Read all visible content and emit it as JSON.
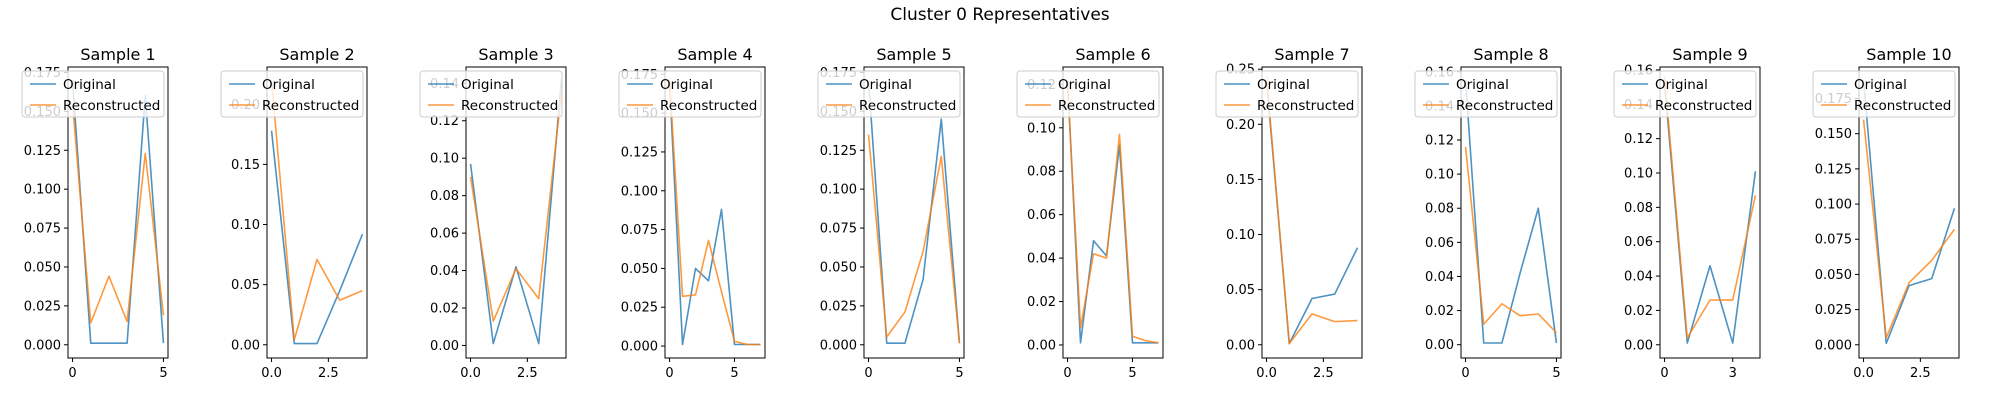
{
  "figure": {
    "title": "Cluster 0 Representatives"
  },
  "colors": {
    "original": "#1f77b4",
    "reconstructed": "#ff7f0e"
  },
  "legend": {
    "labels": [
      "Original",
      "Reconstructed"
    ],
    "placement": "upper-right"
  },
  "chart_data": [
    {
      "type": "line",
      "title": "Sample 1",
      "xlim": [
        -0.25,
        5.25
      ],
      "ylim": [
        -0.0085,
        0.1785
      ],
      "xticks": [
        {
          "v": 0,
          "label": "0"
        },
        {
          "v": 5,
          "label": "5"
        }
      ],
      "yticks": [
        {
          "v": 0,
          "label": "0.000"
        },
        {
          "v": 0.025,
          "label": "0.025"
        },
        {
          "v": 0.05,
          "label": "0.050"
        },
        {
          "v": 0.075,
          "label": "0.075"
        },
        {
          "v": 0.1,
          "label": "0.100"
        },
        {
          "v": 0.125,
          "label": "0.125"
        },
        {
          "v": 0.15,
          "label": "0.150"
        },
        {
          "v": 0.175,
          "label": "0.175"
        }
      ],
      "series": [
        {
          "name": "Original",
          "x": [
            0,
            1,
            2,
            3,
            4,
            5
          ],
          "y": [
            0.17,
            0.001,
            0.001,
            0.001,
            0.16,
            0.001
          ]
        },
        {
          "name": "Reconstructed",
          "x": [
            0,
            1,
            2,
            3,
            4,
            5
          ],
          "y": [
            0.155,
            0.014,
            0.044,
            0.015,
            0.123,
            0.019
          ]
        }
      ]
    },
    {
      "type": "line",
      "title": "Sample 2",
      "xlim": [
        -0.2,
        4.2
      ],
      "ylim": [
        -0.011,
        0.231
      ],
      "xticks": [
        {
          "v": 0,
          "label": "0.0"
        },
        {
          "v": 2.5,
          "label": "2.5"
        }
      ],
      "yticks": [
        {
          "v": 0,
          "label": "0.00"
        },
        {
          "v": 0.05,
          "label": "0.05"
        },
        {
          "v": 0.1,
          "label": "0.10"
        },
        {
          "v": 0.15,
          "label": "0.15"
        },
        {
          "v": 0.2,
          "label": "0.20"
        }
      ],
      "series": [
        {
          "name": "Original",
          "x": [
            0,
            1,
            2,
            3,
            4
          ],
          "y": [
            0.178,
            0.001,
            0.001,
            0.045,
            0.092
          ]
        },
        {
          "name": "Reconstructed",
          "x": [
            0,
            1,
            2,
            3,
            4
          ],
          "y": [
            0.22,
            0.004,
            0.071,
            0.037,
            0.045
          ]
        }
      ]
    },
    {
      "type": "line",
      "title": "Sample 3",
      "xlim": [
        -0.2,
        4.2
      ],
      "ylim": [
        -0.0067,
        0.1487
      ],
      "xticks": [
        {
          "v": 0,
          "label": "0.0"
        },
        {
          "v": 2.5,
          "label": "2.5"
        }
      ],
      "yticks": [
        {
          "v": 0,
          "label": "0.00"
        },
        {
          "v": 0.02,
          "label": "0.02"
        },
        {
          "v": 0.04,
          "label": "0.04"
        },
        {
          "v": 0.06,
          "label": "0.06"
        },
        {
          "v": 0.08,
          "label": "0.08"
        },
        {
          "v": 0.1,
          "label": "0.10"
        },
        {
          "v": 0.12,
          "label": "0.12"
        },
        {
          "v": 0.14,
          "label": "0.14"
        }
      ],
      "series": [
        {
          "name": "Original",
          "x": [
            0,
            1,
            2,
            3,
            4
          ],
          "y": [
            0.097,
            0.001,
            0.042,
            0.001,
            0.142
          ]
        },
        {
          "name": "Reconstructed",
          "x": [
            0,
            1,
            2,
            3,
            4
          ],
          "y": [
            0.09,
            0.013,
            0.041,
            0.025,
            0.135
          ]
        }
      ]
    },
    {
      "type": "line",
      "title": "Sample 4",
      "xlim": [
        -0.35,
        7.35
      ],
      "ylim": [
        -0.0077,
        0.1797
      ],
      "xticks": [
        {
          "v": 0,
          "label": "0"
        },
        {
          "v": 5,
          "label": "5"
        }
      ],
      "yticks": [
        {
          "v": 0,
          "label": "0.000"
        },
        {
          "v": 0.025,
          "label": "0.025"
        },
        {
          "v": 0.05,
          "label": "0.050"
        },
        {
          "v": 0.075,
          "label": "0.075"
        },
        {
          "v": 0.1,
          "label": "0.100"
        },
        {
          "v": 0.125,
          "label": "0.125"
        },
        {
          "v": 0.15,
          "label": "0.150"
        },
        {
          "v": 0.175,
          "label": "0.175"
        }
      ],
      "series": [
        {
          "name": "Original",
          "x": [
            0,
            1,
            2,
            3,
            4,
            5,
            6,
            7
          ],
          "y": [
            0.17,
            0.001,
            0.05,
            0.042,
            0.088,
            0.001,
            0.001,
            0.001
          ]
        },
        {
          "name": "Reconstructed",
          "x": [
            0,
            1,
            2,
            3,
            4,
            5,
            6,
            7
          ],
          "y": [
            0.172,
            0.032,
            0.033,
            0.068,
            0.035,
            0.003,
            0.001,
            0.001
          ]
        }
      ]
    },
    {
      "type": "line",
      "title": "Sample 5",
      "xlim": [
        -0.25,
        5.25
      ],
      "ylim": [
        -0.0085,
        0.1785
      ],
      "xticks": [
        {
          "v": 0,
          "label": "0"
        },
        {
          "v": 5,
          "label": "5"
        }
      ],
      "yticks": [
        {
          "v": 0,
          "label": "0.000"
        },
        {
          "v": 0.025,
          "label": "0.025"
        },
        {
          "v": 0.05,
          "label": "0.050"
        },
        {
          "v": 0.075,
          "label": "0.075"
        },
        {
          "v": 0.1,
          "label": "0.100"
        },
        {
          "v": 0.125,
          "label": "0.125"
        },
        {
          "v": 0.15,
          "label": "0.150"
        },
        {
          "v": 0.175,
          "label": "0.175"
        }
      ],
      "series": [
        {
          "name": "Original",
          "x": [
            0,
            1,
            2,
            3,
            4,
            5
          ],
          "y": [
            0.17,
            0.001,
            0.001,
            0.042,
            0.145,
            0.001
          ]
        },
        {
          "name": "Reconstructed",
          "x": [
            0,
            1,
            2,
            3,
            4,
            5
          ],
          "y": [
            0.135,
            0.005,
            0.021,
            0.06,
            0.121,
            0.001
          ]
        }
      ]
    },
    {
      "type": "line",
      "title": "Sample 6",
      "xlim": [
        -0.35,
        7.35
      ],
      "ylim": [
        -0.006,
        0.128
      ],
      "xticks": [
        {
          "v": 0,
          "label": "0"
        },
        {
          "v": 5,
          "label": "5"
        }
      ],
      "yticks": [
        {
          "v": 0,
          "label": "0.00"
        },
        {
          "v": 0.02,
          "label": "0.02"
        },
        {
          "v": 0.04,
          "label": "0.04"
        },
        {
          "v": 0.06,
          "label": "0.06"
        },
        {
          "v": 0.08,
          "label": "0.08"
        },
        {
          "v": 0.1,
          "label": "0.10"
        },
        {
          "v": 0.12,
          "label": "0.12"
        }
      ],
      "series": [
        {
          "name": "Original",
          "x": [
            0,
            1,
            2,
            3,
            4,
            5,
            6,
            7
          ],
          "y": [
            0.122,
            0.001,
            0.048,
            0.041,
            0.092,
            0.001,
            0.001,
            0.001
          ]
        },
        {
          "name": "Reconstructed",
          "x": [
            0,
            1,
            2,
            3,
            4,
            5,
            6,
            7
          ],
          "y": [
            0.12,
            0.008,
            0.042,
            0.04,
            0.097,
            0.004,
            0.002,
            0.001
          ]
        }
      ]
    },
    {
      "type": "line",
      "title": "Sample 7",
      "xlim": [
        -0.2,
        4.2
      ],
      "ylim": [
        -0.012,
        0.252
      ],
      "xticks": [
        {
          "v": 0,
          "label": "0.0"
        },
        {
          "v": 2.5,
          "label": "2.5"
        }
      ],
      "yticks": [
        {
          "v": 0,
          "label": "0.00"
        },
        {
          "v": 0.05,
          "label": "0.05"
        },
        {
          "v": 0.1,
          "label": "0.10"
        },
        {
          "v": 0.15,
          "label": "0.15"
        },
        {
          "v": 0.2,
          "label": "0.20"
        },
        {
          "v": 0.25,
          "label": "0.25"
        }
      ],
      "series": [
        {
          "name": "Original",
          "x": [
            0,
            1,
            2,
            3,
            4
          ],
          "y": [
            0.24,
            0.001,
            0.042,
            0.046,
            0.088
          ]
        },
        {
          "name": "Reconstructed",
          "x": [
            0,
            1,
            2,
            3,
            4
          ],
          "y": [
            0.243,
            0.001,
            0.028,
            0.021,
            0.022
          ]
        }
      ]
    },
    {
      "type": "line",
      "title": "Sample 8",
      "xlim": [
        -0.25,
        5.25
      ],
      "ylim": [
        -0.0078,
        0.1628
      ],
      "xticks": [
        {
          "v": 0,
          "label": "0"
        },
        {
          "v": 5,
          "label": "5"
        }
      ],
      "yticks": [
        {
          "v": 0,
          "label": "0.00"
        },
        {
          "v": 0.02,
          "label": "0.02"
        },
        {
          "v": 0.04,
          "label": "0.04"
        },
        {
          "v": 0.06,
          "label": "0.06"
        },
        {
          "v": 0.08,
          "label": "0.08"
        },
        {
          "v": 0.1,
          "label": "0.10"
        },
        {
          "v": 0.12,
          "label": "0.12"
        },
        {
          "v": 0.14,
          "label": "0.14"
        },
        {
          "v": 0.16,
          "label": "0.16"
        }
      ],
      "series": [
        {
          "name": "Original",
          "x": [
            0,
            1,
            2,
            3,
            4,
            5
          ],
          "y": [
            0.155,
            0.001,
            0.001,
            0.042,
            0.08,
            0.001
          ]
        },
        {
          "name": "Reconstructed",
          "x": [
            0,
            1,
            2,
            3,
            4,
            5
          ],
          "y": [
            0.116,
            0.012,
            0.024,
            0.017,
            0.018,
            0.007
          ]
        }
      ]
    },
    {
      "type": "line",
      "title": "Sample 9",
      "xlim": [
        -0.2,
        4.2
      ],
      "ylim": [
        -0.0077,
        0.1617
      ],
      "xticks": [
        {
          "v": 0,
          "label": "0"
        },
        {
          "v": 3,
          "label": "3"
        }
      ],
      "yticks": [
        {
          "v": 0,
          "label": "0.00"
        },
        {
          "v": 0.02,
          "label": "0.02"
        },
        {
          "v": 0.04,
          "label": "0.04"
        },
        {
          "v": 0.06,
          "label": "0.06"
        },
        {
          "v": 0.08,
          "label": "0.08"
        },
        {
          "v": 0.1,
          "label": "0.10"
        },
        {
          "v": 0.12,
          "label": "0.12"
        },
        {
          "v": 0.14,
          "label": "0.14"
        },
        {
          "v": 0.16,
          "label": "0.16"
        }
      ],
      "series": [
        {
          "name": "Original",
          "x": [
            0,
            1,
            2,
            3,
            4
          ],
          "y": [
            0.152,
            0.001,
            0.046,
            0.001,
            0.101
          ]
        },
        {
          "name": "Reconstructed",
          "x": [
            0,
            1,
            2,
            3,
            4
          ],
          "y": [
            0.156,
            0.004,
            0.026,
            0.026,
            0.087
          ]
        }
      ]
    },
    {
      "type": "line",
      "title": "Sample 10",
      "xlim": [
        -0.2,
        4.2
      ],
      "ylim": [
        -0.0094,
        0.1974
      ],
      "xticks": [
        {
          "v": 0,
          "label": "0.0"
        },
        {
          "v": 2.5,
          "label": "2.5"
        }
      ],
      "yticks": [
        {
          "v": 0,
          "label": "0.000"
        },
        {
          "v": 0.025,
          "label": "0.025"
        },
        {
          "v": 0.05,
          "label": "0.050"
        },
        {
          "v": 0.075,
          "label": "0.075"
        },
        {
          "v": 0.1,
          "label": "0.100"
        },
        {
          "v": 0.125,
          "label": "0.125"
        },
        {
          "v": 0.15,
          "label": "0.150"
        },
        {
          "v": 0.175,
          "label": "0.175"
        }
      ],
      "series": [
        {
          "name": "Original",
          "x": [
            0,
            1,
            2,
            3,
            4
          ],
          "y": [
            0.188,
            0.001,
            0.042,
            0.047,
            0.097
          ]
        },
        {
          "name": "Reconstructed",
          "x": [
            0,
            1,
            2,
            3,
            4
          ],
          "y": [
            0.16,
            0.005,
            0.044,
            0.06,
            0.082
          ]
        }
      ]
    }
  ]
}
